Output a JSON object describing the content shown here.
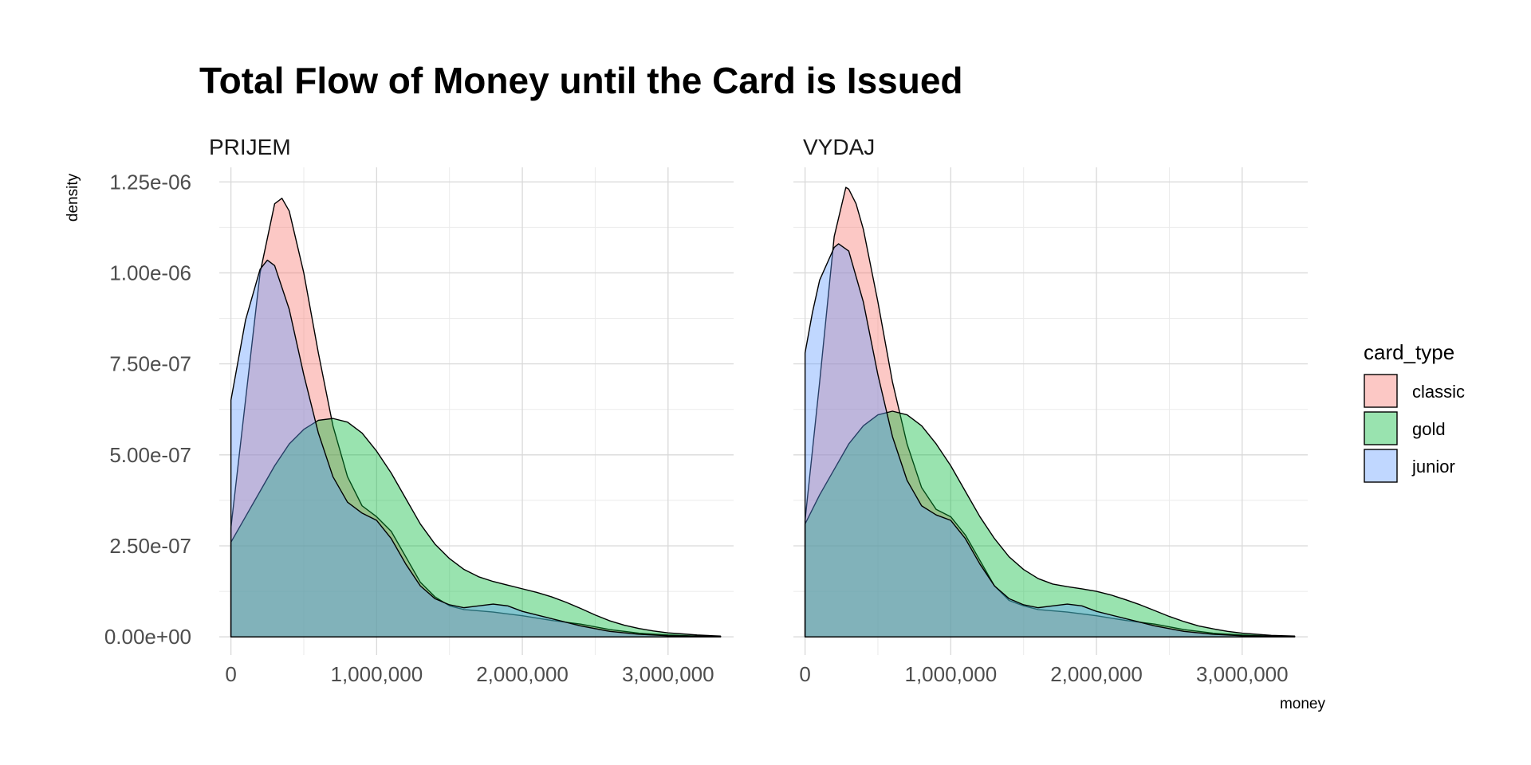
{
  "chart_data": {
    "type": "area",
    "title": "Total Flow of Money until the Card is Issued",
    "xlabel": "money",
    "ylabel": "density",
    "xlim": [
      -80000,
      3450000
    ],
    "ylim": [
      -5e-08,
      1.29e-06
    ],
    "x_ticks": [
      0,
      1000000,
      2000000,
      3000000
    ],
    "x_tick_labels": [
      "0",
      "1,000,000",
      "2,000,000",
      "3,000,000"
    ],
    "y_ticks": [
      0,
      2.5e-07,
      5e-07,
      7.5e-07,
      1e-06,
      1.25e-06
    ],
    "y_tick_labels": [
      "0.00e+00",
      "2.50e-07",
      "5.00e-07",
      "7.50e-07",
      "1.00e-06",
      "1.25e-06"
    ],
    "grid": true,
    "legend": {
      "title": "card_type",
      "position": "right",
      "entries": [
        {
          "label": "classic",
          "color": "#F8766D"
        },
        {
          "label": "gold",
          "color": "#00BA38"
        },
        {
          "label": "junior",
          "color": "#619CFF"
        }
      ]
    },
    "fill_alpha": 0.4,
    "panels": [
      {
        "label": "PRIJEM",
        "series": [
          {
            "name": "classic",
            "x": [
              0,
              100000,
              200000,
              300000,
              350000,
              400000,
              500000,
              600000,
              700000,
              800000,
              900000,
              1000000,
              1100000,
              1200000,
              1300000,
              1400000,
              1500000,
              1600000,
              1800000,
              2000000,
              2200000,
              2400000,
              2600000,
              2800000,
              3000000,
              3200000,
              3360000
            ],
            "y": [
              3e-07,
              6.5e-07,
              1e-06,
              1.19e-06,
              1.205e-06,
              1.17e-06,
              1e-06,
              7.8e-07,
              5.8e-07,
              4.4e-07,
              3.6e-07,
              3.3e-07,
              2.9e-07,
              2.2e-07,
              1.5e-07,
              1.1e-07,
              8.5e-08,
              7.5e-08,
              6.8e-08,
              5.8e-08,
              4.5e-08,
              3.5e-08,
              2e-08,
              1e-08,
              5e-09,
              2e-09,
              1e-09
            ]
          },
          {
            "name": "gold",
            "x": [
              0,
              100000,
              200000,
              300000,
              400000,
              500000,
              600000,
              700000,
              800000,
              900000,
              1000000,
              1100000,
              1200000,
              1300000,
              1400000,
              1500000,
              1600000,
              1700000,
              1800000,
              1900000,
              2000000,
              2100000,
              2200000,
              2300000,
              2400000,
              2500000,
              2600000,
              2700000,
              2800000,
              2900000,
              3000000,
              3100000,
              3200000,
              3360000
            ],
            "y": [
              2.6e-07,
              3.3e-07,
              4e-07,
              4.7e-07,
              5.3e-07,
              5.7e-07,
              5.95e-07,
              6e-07,
              5.9e-07,
              5.6e-07,
              5.1e-07,
              4.5e-07,
              3.8e-07,
              3.1e-07,
              2.55e-07,
              2.15e-07,
              1.85e-07,
              1.65e-07,
              1.52e-07,
              1.42e-07,
              1.32e-07,
              1.22e-07,
              1.1e-07,
              9.5e-08,
              7.8e-08,
              6e-08,
              4.4e-08,
              3.2e-08,
              2.3e-08,
              1.6e-08,
              1.1e-08,
              8e-09,
              5e-09,
              2e-09
            ]
          },
          {
            "name": "junior",
            "x": [
              0,
              100000,
              200000,
              250000,
              300000,
              400000,
              500000,
              600000,
              700000,
              800000,
              900000,
              1000000,
              1100000,
              1200000,
              1300000,
              1400000,
              1500000,
              1600000,
              1700000,
              1800000,
              1900000,
              2000000,
              2200000,
              2400000,
              2600000,
              2800000,
              3000000,
              3360000
            ],
            "y": [
              6.5e-07,
              8.7e-07,
              1.01e-06,
              1.035e-06,
              1.02e-06,
              9e-07,
              7.2e-07,
              5.6e-07,
              4.4e-07,
              3.7e-07,
              3.4e-07,
              3.2e-07,
              2.7e-07,
              2e-07,
              1.4e-07,
              1.05e-07,
              8.8e-08,
              8e-08,
              8.5e-08,
              9e-08,
              8.5e-08,
              7e-08,
              5e-08,
              3e-08,
              1.5e-08,
              7e-09,
              3e-09,
              1e-09
            ]
          }
        ]
      },
      {
        "label": "VYDAJ",
        "series": [
          {
            "name": "classic",
            "x": [
              0,
              100000,
              200000,
              280000,
              300000,
              350000,
              400000,
              500000,
              600000,
              700000,
              800000,
              900000,
              1000000,
              1100000,
              1200000,
              1300000,
              1400000,
              1500000,
              1600000,
              1800000,
              2000000,
              2200000,
              2400000,
              2600000,
              2800000,
              3000000,
              3200000,
              3360000
            ],
            "y": [
              3.2e-07,
              7e-07,
              1.1e-06,
              1.235e-06,
              1.23e-06,
              1.19e-06,
              1.12e-06,
              9.2e-07,
              7e-07,
              5.3e-07,
              4.1e-07,
              3.5e-07,
              3.3e-07,
              2.8e-07,
              2.1e-07,
              1.4e-07,
              1e-07,
              8.5e-08,
              7.5e-08,
              6.8e-08,
              5.8e-08,
              4.5e-08,
              3.5e-08,
              2e-08,
              1e-08,
              5e-09,
              2e-09,
              1e-09
            ]
          },
          {
            "name": "gold",
            "x": [
              0,
              100000,
              200000,
              300000,
              400000,
              500000,
              600000,
              700000,
              800000,
              900000,
              1000000,
              1100000,
              1200000,
              1300000,
              1400000,
              1500000,
              1600000,
              1700000,
              1800000,
              1900000,
              2000000,
              2100000,
              2200000,
              2300000,
              2400000,
              2500000,
              2600000,
              2700000,
              2800000,
              2900000,
              3000000,
              3100000,
              3200000,
              3360000
            ],
            "y": [
              3.1e-07,
              3.9e-07,
              4.6e-07,
              5.3e-07,
              5.8e-07,
              6.1e-07,
              6.2e-07,
              6.1e-07,
              5.8e-07,
              5.3e-07,
              4.7e-07,
              4e-07,
              3.3e-07,
              2.7e-07,
              2.2e-07,
              1.85e-07,
              1.6e-07,
              1.45e-07,
              1.38e-07,
              1.32e-07,
              1.25e-07,
              1.15e-07,
              1.02e-07,
              8.8e-08,
              7.2e-08,
              5.6e-08,
              4.2e-08,
              3e-08,
              2.2e-08,
              1.5e-08,
              1e-08,
              7e-09,
              4e-09,
              2e-09
            ]
          },
          {
            "name": "junior",
            "x": [
              0,
              50000,
              100000,
              200000,
              230000,
              300000,
              400000,
              500000,
              600000,
              700000,
              800000,
              900000,
              1000000,
              1100000,
              1200000,
              1300000,
              1400000,
              1500000,
              1600000,
              1700000,
              1800000,
              1900000,
              2000000,
              2200000,
              2400000,
              2600000,
              2800000,
              3000000,
              3360000
            ],
            "y": [
              7.8e-07,
              8.9e-07,
              9.8e-07,
              1.07e-06,
              1.08e-06,
              1.06e-06,
              9.2e-07,
              7.2e-07,
              5.5e-07,
              4.3e-07,
              3.6e-07,
              3.35e-07,
              3.2e-07,
              2.7e-07,
              2e-07,
              1.4e-07,
              1.05e-07,
              8.8e-08,
              8e-08,
              8.5e-08,
              9e-08,
              8.5e-08,
              7e-08,
              5e-08,
              3e-08,
              1.5e-08,
              7e-09,
              3e-09,
              1e-09
            ]
          }
        ]
      }
    ]
  }
}
